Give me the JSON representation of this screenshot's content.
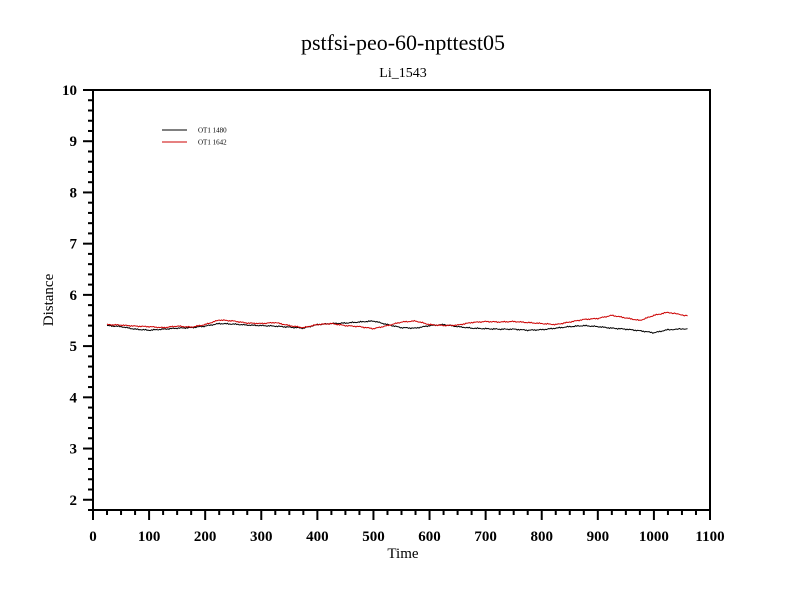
{
  "chart_data": {
    "type": "line",
    "title": "pstfsi-peo-60-npttest05",
    "subtitle": "Li_1543",
    "xlabel": "Time",
    "ylabel": "Distance",
    "xlim": [
      0,
      1100
    ],
    "ylim": [
      1.8,
      10
    ],
    "xticks": [
      0,
      100,
      200,
      300,
      400,
      500,
      600,
      700,
      800,
      900,
      1000,
      1100
    ],
    "yticks": [
      2,
      3,
      4,
      5,
      6,
      7,
      8,
      9,
      10
    ],
    "xtick_labels": [
      "0",
      "100",
      "200",
      "300",
      "400",
      "500",
      "600",
      "700",
      "800",
      "900",
      "1000",
      "1100"
    ],
    "ytick_labels": [
      "2",
      "3",
      "4",
      "5",
      "6",
      "7",
      "8",
      "9",
      "10"
    ],
    "grid": false,
    "legend_position": "top-left",
    "series": [
      {
        "name": "OT1 1480",
        "color": "#000000",
        "x": [
          25,
          50,
          75,
          100,
          125,
          150,
          175,
          200,
          225,
          250,
          275,
          300,
          325,
          350,
          375,
          400,
          425,
          450,
          475,
          500,
          525,
          550,
          575,
          600,
          625,
          650,
          675,
          700,
          725,
          750,
          775,
          800,
          825,
          850,
          875,
          900,
          925,
          950,
          975,
          1000,
          1025,
          1060
        ],
        "y": [
          5.4,
          5.38,
          5.33,
          5.31,
          5.33,
          5.35,
          5.36,
          5.39,
          5.44,
          5.43,
          5.41,
          5.4,
          5.39,
          5.37,
          5.35,
          5.42,
          5.44,
          5.45,
          5.47,
          5.49,
          5.42,
          5.36,
          5.35,
          5.4,
          5.42,
          5.38,
          5.35,
          5.34,
          5.33,
          5.33,
          5.31,
          5.32,
          5.35,
          5.38,
          5.4,
          5.38,
          5.35,
          5.33,
          5.3,
          5.26,
          5.32,
          5.34
        ]
      },
      {
        "name": "OT1 1642",
        "color": "#cc0000",
        "x": [
          25,
          50,
          75,
          100,
          125,
          150,
          175,
          200,
          225,
          250,
          275,
          300,
          325,
          350,
          375,
          400,
          425,
          450,
          475,
          500,
          525,
          550,
          575,
          600,
          625,
          650,
          675,
          700,
          725,
          750,
          775,
          800,
          825,
          850,
          875,
          900,
          925,
          950,
          975,
          1000,
          1025,
          1060
        ],
        "y": [
          5.42,
          5.41,
          5.39,
          5.38,
          5.36,
          5.39,
          5.37,
          5.42,
          5.51,
          5.49,
          5.45,
          5.44,
          5.46,
          5.4,
          5.36,
          5.42,
          5.44,
          5.4,
          5.38,
          5.34,
          5.4,
          5.47,
          5.49,
          5.42,
          5.4,
          5.41,
          5.46,
          5.48,
          5.47,
          5.48,
          5.46,
          5.44,
          5.42,
          5.47,
          5.52,
          5.54,
          5.6,
          5.55,
          5.5,
          5.6,
          5.66,
          5.59
        ]
      }
    ]
  }
}
